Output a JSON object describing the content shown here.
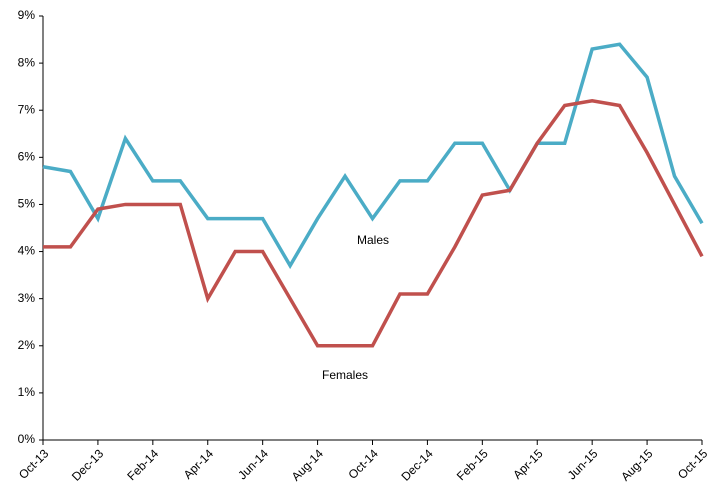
{
  "chart_data": {
    "type": "line",
    "categories": [
      "Oct-13",
      null,
      "Dec-13",
      null,
      "Feb-14",
      null,
      "Apr-14",
      null,
      "Jun-14",
      null,
      "Aug-14",
      null,
      "Oct-14",
      null,
      "Dec-14",
      null,
      "Feb-15",
      null,
      "Apr-15",
      null,
      "Jun-15",
      null,
      "Aug-15",
      null,
      "Oct-15"
    ],
    "series": [
      {
        "name": "Males",
        "color": "#4bacc6",
        "values": [
          5.8,
          5.7,
          4.7,
          6.4,
          5.5,
          5.5,
          4.7,
          4.7,
          4.7,
          3.7,
          4.7,
          5.6,
          4.7,
          5.5,
          5.5,
          6.3,
          6.3,
          5.3,
          6.3,
          6.3,
          8.3,
          8.4,
          7.7,
          5.6,
          4.6
        ]
      },
      {
        "name": "Females",
        "color": "#c0504d",
        "values": [
          4.1,
          4.1,
          4.9,
          5.0,
          5.0,
          5.0,
          3.0,
          4.0,
          4.0,
          3.0,
          2.0,
          2.0,
          2.0,
          3.1,
          3.1,
          4.1,
          5.2,
          5.3,
          6.3,
          7.1,
          7.2,
          7.1,
          6.1,
          5.0,
          3.9
        ]
      }
    ],
    "ylim": [
      0,
      9
    ],
    "yticks": [
      {
        "value": 0,
        "label": "0%"
      },
      {
        "value": 1,
        "label": "1%"
      },
      {
        "value": 2,
        "label": "2%"
      },
      {
        "value": 3,
        "label": "3%"
      },
      {
        "value": 4,
        "label": "4%"
      },
      {
        "value": 5,
        "label": "5%"
      },
      {
        "value": 6,
        "label": "6%"
      },
      {
        "value": 7,
        "label": "7%"
      },
      {
        "value": 8,
        "label": "8%"
      },
      {
        "value": 9,
        "label": "9%"
      }
    ],
    "grid": false
  }
}
